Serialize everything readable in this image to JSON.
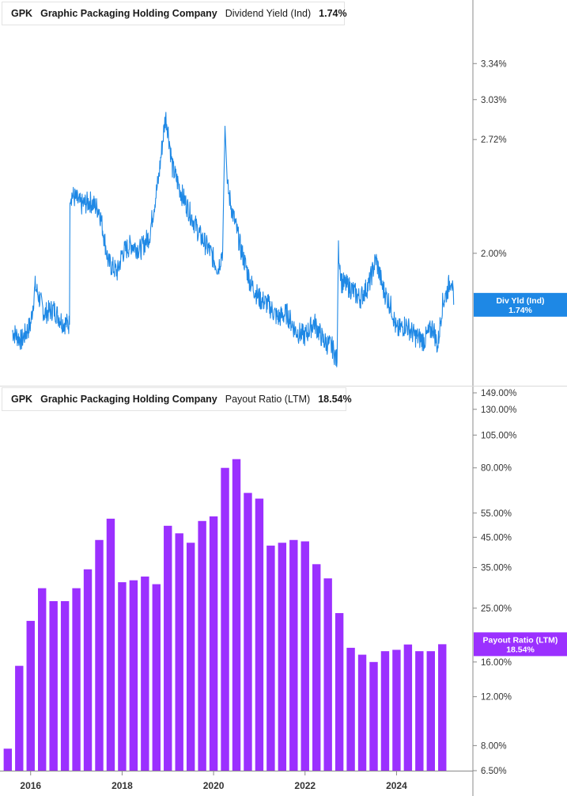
{
  "colors": {
    "yield_line": "#1e88e5",
    "payout_bar": "#9b30ff",
    "axis": "#888888",
    "divider": "#d9d9d9",
    "background": "#ffffff"
  },
  "panels": {
    "yield": {
      "ticker": "GPK",
      "company": "Graphic Packaging Holding Company",
      "metric": "Dividend Yield (Ind)",
      "value": "1.74%",
      "flag_line1": "Div Yld (Ind)",
      "flag_line2": "1.74%"
    },
    "payout": {
      "ticker": "GPK",
      "company": "Graphic Packaging Holding Company",
      "metric": "Payout Ratio (LTM)",
      "value": "18.54%",
      "flag_line1": "Payout Ratio (LTM)",
      "flag_line2": "18.54%"
    }
  },
  "chart_data": [
    {
      "type": "line",
      "title": "GPK Graphic Packaging Holding Company Dividend Yield (Ind) 1.74%",
      "y_scale": "log",
      "ylim": [
        1.45,
        3.8
      ],
      "y_ticks": [
        3.34,
        3.03,
        2.72,
        2.0
      ],
      "y_tick_labels": [
        "3.34%",
        "3.03%",
        "2.72%",
        "2.00%"
      ],
      "x": [
        2015.6,
        2015.8,
        2016.0,
        2016.1,
        2016.3,
        2016.5,
        2016.7,
        2016.85,
        2016.86,
        2016.95,
        2017.1,
        2017.3,
        2017.5,
        2017.7,
        2017.9,
        2018.0,
        2018.2,
        2018.4,
        2018.6,
        2018.8,
        2018.95,
        2019.0,
        2019.1,
        2019.3,
        2019.5,
        2019.7,
        2019.9,
        2020.1,
        2020.2,
        2020.25,
        2020.3,
        2020.4,
        2020.6,
        2020.8,
        2021.0,
        2021.2,
        2021.4,
        2021.6,
        2021.8,
        2022.0,
        2022.2,
        2022.4,
        2022.6,
        2022.7,
        2022.73,
        2022.8,
        2023.0,
        2023.2,
        2023.4,
        2023.55,
        2023.7,
        2023.9,
        2024.0,
        2024.2,
        2024.4,
        2024.6,
        2024.8,
        2024.9,
        2025.0,
        2025.1,
        2025.2,
        2025.25
      ],
      "values": [
        1.62,
        1.58,
        1.65,
        1.83,
        1.7,
        1.72,
        1.66,
        1.65,
        2.35,
        2.33,
        2.28,
        2.3,
        2.25,
        1.95,
        1.9,
        2.0,
        2.05,
        2.02,
        2.1,
        2.45,
        2.9,
        2.8,
        2.52,
        2.35,
        2.22,
        2.1,
        2.02,
        1.92,
        2.02,
        2.82,
        2.4,
        2.25,
        2.02,
        1.85,
        1.77,
        1.74,
        1.68,
        1.7,
        1.62,
        1.6,
        1.66,
        1.58,
        1.55,
        1.49,
        2.02,
        1.85,
        1.82,
        1.77,
        1.84,
        1.97,
        1.82,
        1.72,
        1.62,
        1.65,
        1.6,
        1.58,
        1.64,
        1.55,
        1.74,
        1.8,
        1.88,
        1.74
      ]
    },
    {
      "type": "bar",
      "title": "GPK Graphic Packaging Holding Company Payout Ratio (LTM) 18.54%",
      "y_scale": "log",
      "ylim": [
        6.5,
        149.0
      ],
      "y_ticks": [
        149.0,
        130.0,
        105.0,
        80.0,
        55.0,
        45.0,
        35.0,
        25.0,
        16.0,
        12.0,
        8.0,
        6.5
      ],
      "y_tick_labels": [
        "149.00%",
        "130.00%",
        "105.00%",
        "80.00%",
        "55.00%",
        "45.00%",
        "35.00%",
        "25.00%",
        "16.00%",
        "12.00%",
        "8.00%",
        "6.50%"
      ],
      "x": [
        2015.5,
        2015.75,
        2016.0,
        2016.25,
        2016.5,
        2016.75,
        2017.0,
        2017.25,
        2017.5,
        2017.75,
        2018.0,
        2018.25,
        2018.5,
        2018.75,
        2019.0,
        2019.25,
        2019.5,
        2019.75,
        2020.0,
        2020.25,
        2020.5,
        2020.75,
        2021.0,
        2021.25,
        2021.5,
        2021.75,
        2022.0,
        2022.25,
        2022.5,
        2022.75,
        2023.0,
        2023.25,
        2023.5,
        2023.75,
        2024.0,
        2024.25,
        2024.5,
        2024.75,
        2025.0
      ],
      "values": [
        7.8,
        15.5,
        22.5,
        29.5,
        26.5,
        26.5,
        29.5,
        34.5,
        44.0,
        52.5,
        31.0,
        31.5,
        32.5,
        30.5,
        49.5,
        46.5,
        43.0,
        51.5,
        53.5,
        80.0,
        86.0,
        65.0,
        62.0,
        42.0,
        43.0,
        44.0,
        43.5,
        36.0,
        32.0,
        24.0,
        18.0,
        17.0,
        16.0,
        17.5,
        17.7,
        18.5,
        17.5,
        17.5,
        18.54
      ]
    }
  ],
  "x_axis": {
    "labels": [
      "2016",
      "2018",
      "2020",
      "2022",
      "2024"
    ],
    "values": [
      2016,
      2018,
      2020,
      2022,
      2024
    ],
    "range": [
      2015.33,
      2025.67
    ]
  }
}
